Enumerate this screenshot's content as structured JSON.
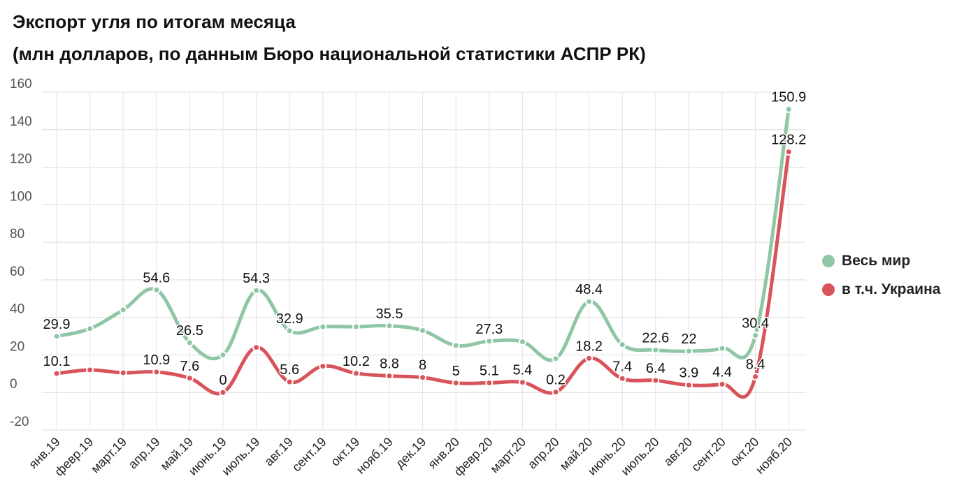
{
  "title_line1": "Экспорт угля по итогам месяца",
  "title_line2": "(млн долларов, по данным Бюро национальной статистики АСПР РК)",
  "chart_data": {
    "type": "line",
    "categories": [
      "янв.19",
      "февр.19",
      "март.19",
      "апр.19",
      "май.19",
      "июнь.19",
      "июль.19",
      "авг.19",
      "сент.19",
      "окт.19",
      "нояб.19",
      "дек.19",
      "янв.20",
      "февр.20",
      "март.20",
      "апр.20",
      "май.20",
      "июнь.20",
      "июль.20",
      "авг.20",
      "сент.20",
      "окт.20",
      "нояб.20"
    ],
    "series": [
      {
        "name": "Весь мир",
        "color": "#8fc6a5",
        "values": [
          29.9,
          34,
          44,
          54.6,
          26.5,
          20,
          54.3,
          32.9,
          35,
          35,
          35.5,
          33,
          25,
          27.3,
          27,
          18,
          48.4,
          25.5,
          22.6,
          22,
          23.5,
          30.4,
          150.9
        ],
        "labels": [
          "29.9",
          "",
          "",
          "54.6",
          "26.5",
          "",
          "54.3",
          "32.9",
          "",
          "",
          "35.5",
          "",
          "",
          "27.3",
          "",
          "",
          "48.4",
          "",
          "22.6",
          "22",
          "",
          "30.4",
          "150.9"
        ]
      },
      {
        "name": "в т.ч. Украина",
        "color": "#d9535b",
        "values": [
          10.1,
          12,
          10.5,
          10.9,
          7.6,
          0,
          24,
          5.6,
          14,
          10.2,
          8.8,
          8,
          5,
          5.1,
          5.4,
          0.2,
          18.2,
          7.4,
          6.4,
          3.9,
          4.4,
          8.4,
          128.2
        ],
        "labels": [
          "10.1",
          "",
          "",
          "10.9",
          "7.6",
          "0",
          "",
          "5.6",
          "",
          "10.2",
          "8.8",
          "8",
          "5",
          "5.1",
          "5.4",
          "0.2",
          "18.2",
          "7.4",
          "6.4",
          "3.9",
          "4.4",
          "8.4",
          "128.2"
        ]
      }
    ],
    "ylim": [
      -20,
      160
    ],
    "yticks": [
      -20,
      0,
      20,
      40,
      60,
      80,
      100,
      120,
      140,
      160
    ],
    "grid": true,
    "legend": "right",
    "legend_items": [
      "Весь мир",
      "в т.ч. Украина"
    ]
  }
}
